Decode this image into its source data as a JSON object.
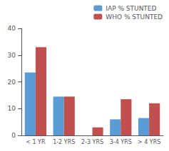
{
  "chart_data": {
    "type": "bar",
    "categories": [
      "< 1 YR",
      "1-2 YRS",
      "2-3 YRS",
      "3-4 YRS",
      "> 4 YRS"
    ],
    "series": [
      {
        "name": "IAP % STUNTED",
        "color": "#5B9BD5",
        "values": [
          23.5,
          14.5,
          0.0,
          6.0,
          6.5
        ]
      },
      {
        "name": "WHO % STUNTED",
        "color": "#C0504D",
        "values": [
          33.0,
          14.5,
          3.0,
          13.5,
          12.0
        ]
      }
    ],
    "ylim": [
      0,
      40
    ],
    "yticks": [
      0,
      10,
      20,
      30,
      40
    ],
    "grid": false,
    "legend": "upper right"
  }
}
